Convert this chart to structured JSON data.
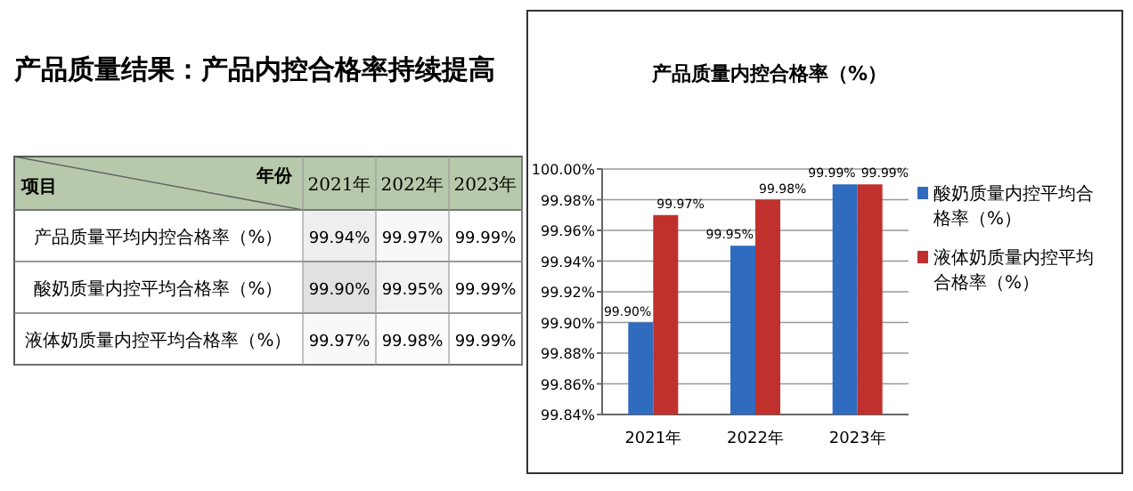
{
  "chart_data": [
    {
      "type": "heatmap",
      "title": "产品质量结果：产品内控合格率持续提高",
      "xlabel": "年份",
      "ylabel": "项目",
      "categories": [
        "2021年",
        "2022年",
        "2023年"
      ],
      "y_categories": [
        "产品质量平均内控合格率（%）",
        "酸奶质量内控平均合格率（%）",
        "液体奶质量内控平均合格率（%）"
      ],
      "cells": [
        [
          99.94,
          99.97,
          99.99
        ],
        [
          99.9,
          99.95,
          99.99
        ],
        [
          99.97,
          99.98,
          99.99
        ]
      ],
      "cell_labels": [
        [
          "99.94%",
          "99.97%",
          "99.99%"
        ],
        [
          "99.90%",
          "99.95%",
          "99.99%"
        ],
        [
          "99.97%",
          "99.98%",
          "99.99%"
        ]
      ]
    },
    {
      "type": "bar",
      "title": "产品质量内控合格率（%）",
      "categories": [
        "2021年",
        "2022年",
        "2023年"
      ],
      "series": [
        {
          "name": "酸奶质量内控平均合格率（%）",
          "color": "#2f6cc0",
          "values": [
            99.9,
            99.95,
            99.99
          ],
          "value_labels": [
            "99.90%",
            "99.95%",
            "99.99%"
          ]
        },
        {
          "name": "液体奶质量内控平均合格率（%）",
          "color": "#c0302c",
          "values": [
            99.97,
            99.98,
            99.99
          ],
          "value_labels": [
            "99.97%",
            "99.98%",
            "99.99%"
          ]
        }
      ],
      "ylim": [
        99.84,
        100.0
      ],
      "yticks": [
        {
          "value": 99.84,
          "label": "99.84%"
        },
        {
          "value": 99.86,
          "label": "99.86%"
        },
        {
          "value": 99.88,
          "label": "99.88%"
        },
        {
          "value": 99.9,
          "label": "99.90%"
        },
        {
          "value": 99.92,
          "label": "99.92%"
        },
        {
          "value": 99.94,
          "label": "99.94%"
        },
        {
          "value": 99.96,
          "label": "99.96%"
        },
        {
          "value": 99.98,
          "label": "99.98%"
        },
        {
          "value": 100.0,
          "label": "100.00%"
        }
      ],
      "grid": "y",
      "legend": "right"
    }
  ]
}
